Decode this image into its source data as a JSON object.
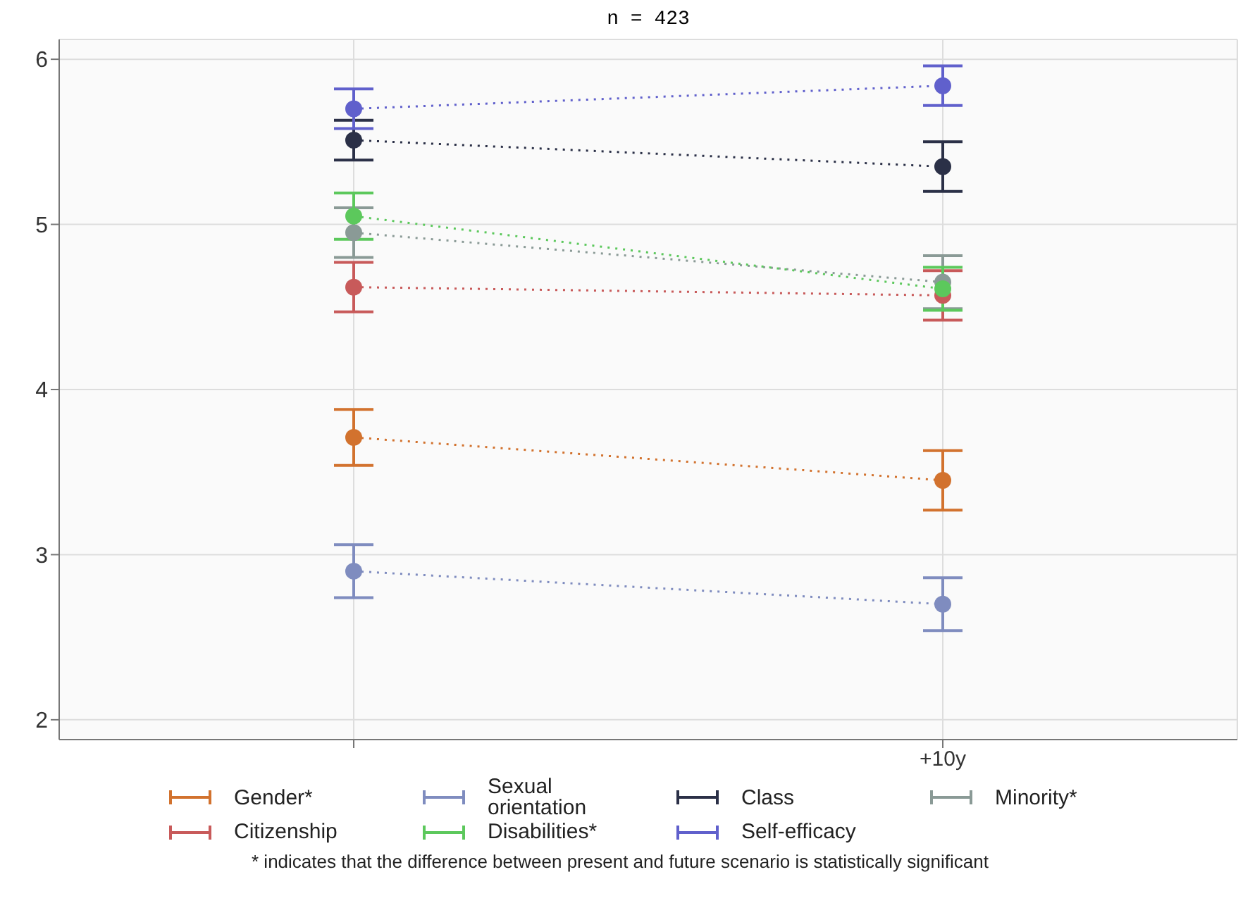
{
  "chart_data": {
    "type": "line",
    "title": "n = 423",
    "categories": [
      null,
      "+10y"
    ],
    "series": [
      {
        "name": "Gender*",
        "color": "#d2722e",
        "values": [
          3.71,
          3.45
        ],
        "errors": [
          0.17,
          0.18
        ]
      },
      {
        "name": "Sexual orientation",
        "color": "#7f8cbf",
        "values": [
          2.9,
          2.7
        ],
        "errors": [
          0.16,
          0.16
        ]
      },
      {
        "name": "Class",
        "color": "#2b3047",
        "values": [
          5.51,
          5.35
        ],
        "errors": [
          0.12,
          0.15
        ]
      },
      {
        "name": "Minority*",
        "color": "#8a9a96",
        "values": [
          4.95,
          4.65
        ],
        "errors": [
          0.15,
          0.16
        ]
      },
      {
        "name": "Citizenship",
        "color": "#c85a5a",
        "values": [
          4.62,
          4.57
        ],
        "errors": [
          0.15,
          0.15
        ]
      },
      {
        "name": "Disabilities*",
        "color": "#5cc85c",
        "values": [
          5.05,
          4.61
        ],
        "errors": [
          0.14,
          0.13
        ]
      },
      {
        "name": "Self-efficacy",
        "color": "#6060cc",
        "values": [
          5.7,
          5.84
        ],
        "errors": [
          0.12,
          0.12
        ]
      }
    ],
    "ylim": [
      1.88,
      6.12
    ],
    "yticks": [
      2,
      3,
      4,
      5,
      6
    ],
    "grid": true,
    "legend": "bottom",
    "marker": "circle",
    "line_style": "dotted",
    "annotations": [
      "* indicates that the difference between present and future scenario is statistically significant"
    ]
  }
}
